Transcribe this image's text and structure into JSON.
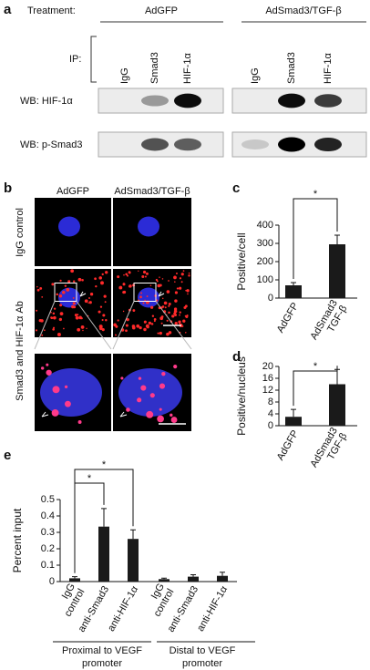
{
  "panel_a": {
    "label": "a",
    "treatment_label": "Treatment:",
    "groups": [
      "AdGFP",
      "AdSmad3/TGF-β"
    ],
    "ip_label": "IP:",
    "lanes": [
      "IgG",
      "Smad3",
      "HIF-1α",
      "IgG",
      "Smad3",
      "HIF-1α"
    ],
    "blots": [
      "WB: HIF-1α",
      "WB: p-Smad3"
    ]
  },
  "panel_b": {
    "label": "b",
    "columns": [
      "AdGFP",
      "AdSmad3/TGF-β"
    ],
    "rows": [
      "IgG control",
      "Smad3 and HIF-1α Ab"
    ]
  },
  "chart_data": [
    {
      "type": "bar",
      "label": "c",
      "ylabel": "Positive/cell",
      "categories": [
        "AdGFP",
        "AdSmad3 TGF-β"
      ],
      "values": [
        70,
        295
      ],
      "errors": [
        15,
        50
      ],
      "color": "#1a1a1a",
      "ylim": [
        0,
        400
      ],
      "yticks": [
        0,
        100,
        200,
        300,
        400
      ],
      "annotations": [
        "*"
      ]
    },
    {
      "type": "bar",
      "label": "d",
      "ylabel": "Positive/nucleus",
      "categories": [
        "AdGFP",
        "AdSmad3 TGF-β"
      ],
      "values": [
        3,
        14
      ],
      "errors": [
        2.5,
        5
      ],
      "color": "#1a1a1a",
      "ylim": [
        0,
        20
      ],
      "yticks": [
        0,
        4,
        8,
        12,
        16,
        20
      ],
      "annotations": [
        "*"
      ]
    },
    {
      "type": "bar",
      "label": "e",
      "ylabel": "Percent input",
      "categories": [
        "IgG control",
        "anti-Smad3",
        "anti-HIF-1α",
        "IgG control",
        "anti-Smad3",
        "anti-HIF-1α"
      ],
      "values": [
        0.02,
        0.335,
        0.26,
        0.015,
        0.03,
        0.035
      ],
      "errors": [
        0.01,
        0.11,
        0.055,
        0.006,
        0.012,
        0.022
      ],
      "color": "#1a1a1a",
      "groups": [
        "Proximal to VEGF promoter",
        "Distal to VEGF promoter"
      ],
      "ylim": [
        0,
        0.5
      ],
      "yticks": [
        0,
        0.1,
        0.2,
        0.3,
        0.4,
        0.5
      ],
      "annotations": [
        "*",
        "*"
      ]
    }
  ]
}
